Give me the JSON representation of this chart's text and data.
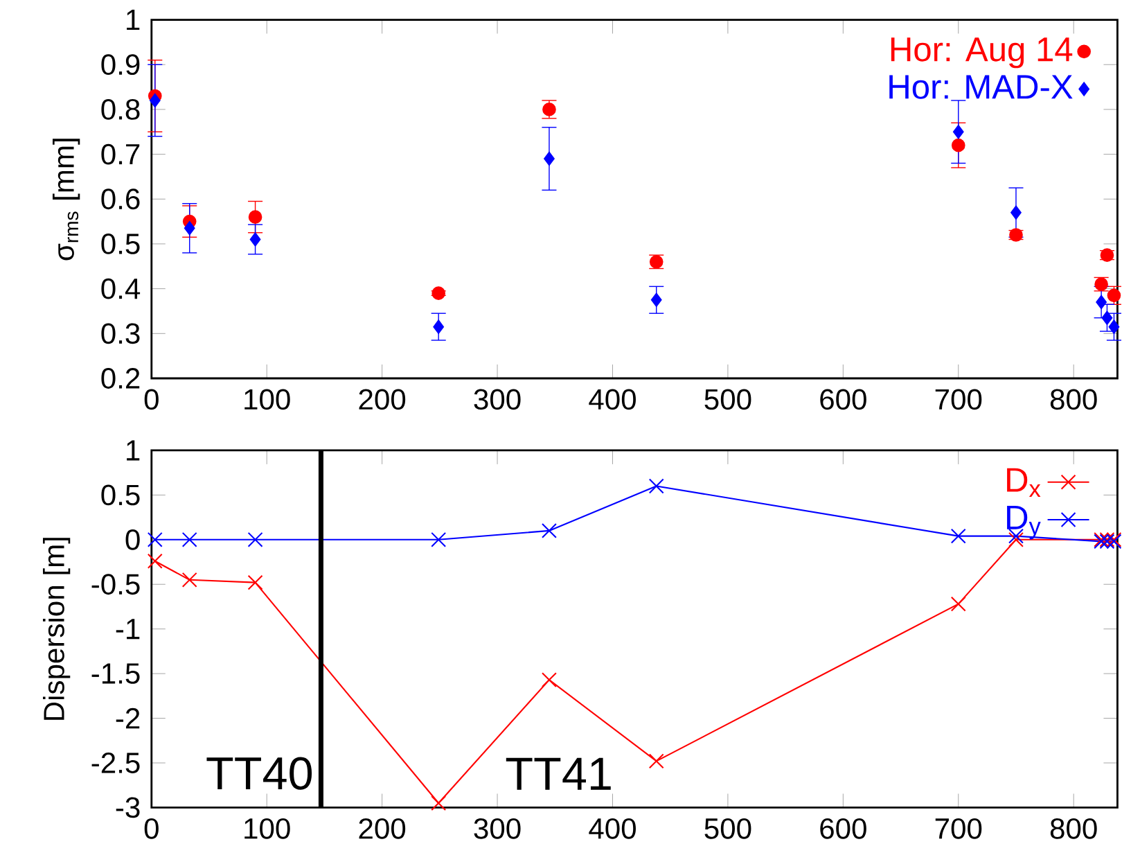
{
  "chart_data": [
    {
      "type": "scatter",
      "ylabel": "σ$_{rms}$ [mm]",
      "xlim": [
        0,
        838
      ],
      "ylim": [
        0.2,
        1
      ],
      "xticks": [
        0,
        100,
        200,
        300,
        400,
        500,
        600,
        700,
        800
      ],
      "yticks": [
        0.2,
        0.3,
        0.4,
        0.5,
        0.6,
        0.7,
        0.8,
        0.9,
        1
      ],
      "legend": "top right",
      "grid": false,
      "x": [
        3,
        33,
        90,
        249,
        345,
        438,
        700,
        750,
        824,
        829,
        835
      ],
      "series": [
        {
          "name": "Hor: Aug 14",
          "color": "#ff0000",
          "marker": "circle",
          "values": [
            0.83,
            0.55,
            0.56,
            0.39,
            0.8,
            0.46,
            0.72,
            0.52,
            0.41,
            0.475,
            0.385
          ],
          "errors": [
            0.08,
            0.035,
            0.035,
            0.005,
            0.02,
            0.015,
            0.05,
            0.01,
            0.015,
            0.01,
            0.02
          ]
        },
        {
          "name": "Hor: MAD-X",
          "color": "#0000ff",
          "marker": "diamond",
          "values": [
            0.82,
            0.535,
            0.51,
            0.315,
            0.69,
            0.375,
            0.75,
            0.57,
            0.37,
            0.335,
            0.315
          ],
          "errors": [
            0.08,
            0.055,
            0.033,
            0.03,
            0.07,
            0.03,
            0.07,
            0.055,
            0.035,
            0.03,
            0.03
          ]
        }
      ]
    },
    {
      "type": "line",
      "ylabel": "Dispersion [m]",
      "xlim": [
        0,
        838
      ],
      "ylim": [
        -3,
        1
      ],
      "xticks": [
        0,
        100,
        200,
        300,
        400,
        500,
        600,
        700,
        800
      ],
      "yticks": [
        -3,
        -2.5,
        -2,
        -1.5,
        -1,
        -0.5,
        0,
        0.5,
        1
      ],
      "legend": "top right",
      "grid": false,
      "x": [
        3,
        33,
        90,
        249,
        345,
        438,
        700,
        750,
        824,
        829,
        835
      ],
      "series": [
        {
          "name": "D$_{x}$",
          "color": "#ff0000",
          "marker": "cross",
          "values": [
            -0.24,
            -0.45,
            -0.48,
            -2.95,
            -1.57,
            -2.48,
            -0.72,
            0,
            0,
            0,
            0
          ]
        },
        {
          "name": "D$_{y}$",
          "color": "#0000ff",
          "marker": "cross",
          "values": [
            0,
            0,
            0,
            0,
            0.1,
            0.6,
            0.04,
            0.04,
            -0.02,
            -0.02,
            -0.02
          ]
        }
      ],
      "ref_lines": [
        {
          "axis": "x",
          "value": 147,
          "color": "#000000"
        }
      ],
      "annotations": [
        "TT40",
        "TT41"
      ]
    }
  ]
}
